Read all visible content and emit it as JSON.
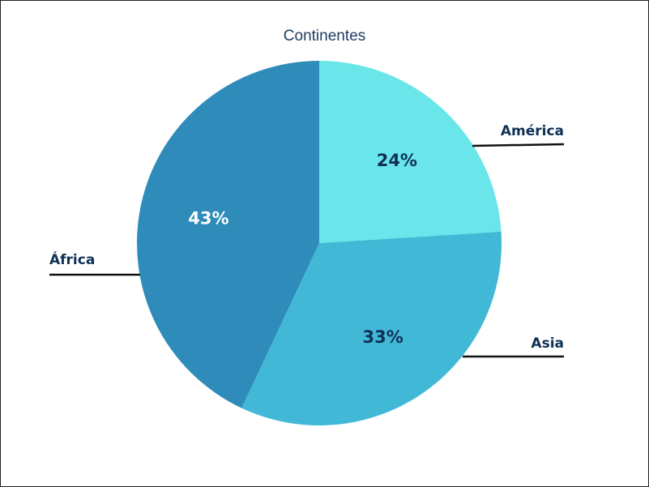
{
  "chart_data": {
    "type": "pie",
    "title": "Continentes",
    "slices": [
      {
        "name": "América",
        "value": 24,
        "label": "24%",
        "color": "#6ae6ea",
        "label_color": "#0f3057"
      },
      {
        "name": "Asia",
        "value": 33,
        "label": "33%",
        "color": "#42b8d7",
        "label_color": "#0f3057"
      },
      {
        "name": "África",
        "value": 43,
        "label": "43%",
        "color": "#2e8bba",
        "label_color": "#ffffff"
      }
    ],
    "start": "12 o'clock",
    "direction": "clockwise",
    "legend": "none"
  }
}
